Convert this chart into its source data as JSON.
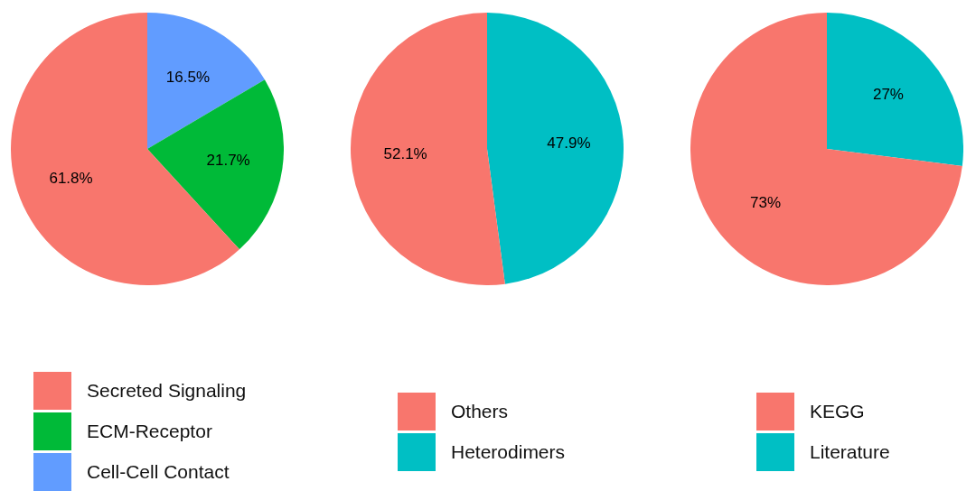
{
  "chart_data": [
    {
      "type": "pie",
      "categories": [
        "Secreted Signaling",
        "ECM-Receptor",
        "Cell-Cell Contact"
      ],
      "values": [
        61.8,
        21.7,
        16.5
      ],
      "colors": [
        "#f8766d",
        "#00ba38",
        "#619cff"
      ],
      "value_labels": [
        "61.8%",
        "21.7%",
        "16.5%"
      ],
      "legend": "bottom"
    },
    {
      "type": "pie",
      "categories": [
        "Others",
        "Heterodimers"
      ],
      "values": [
        52.1,
        47.9
      ],
      "colors": [
        "#f8766d",
        "#00bfc4"
      ],
      "value_labels": [
        "52.1%",
        "47.9%"
      ],
      "legend": "bottom"
    },
    {
      "type": "pie",
      "categories": [
        "KEGG",
        "Literature"
      ],
      "values": [
        73,
        27
      ],
      "colors": [
        "#f8766d",
        "#00bfc4"
      ],
      "value_labels": [
        "73%",
        "27%"
      ],
      "legend": "bottom"
    }
  ]
}
